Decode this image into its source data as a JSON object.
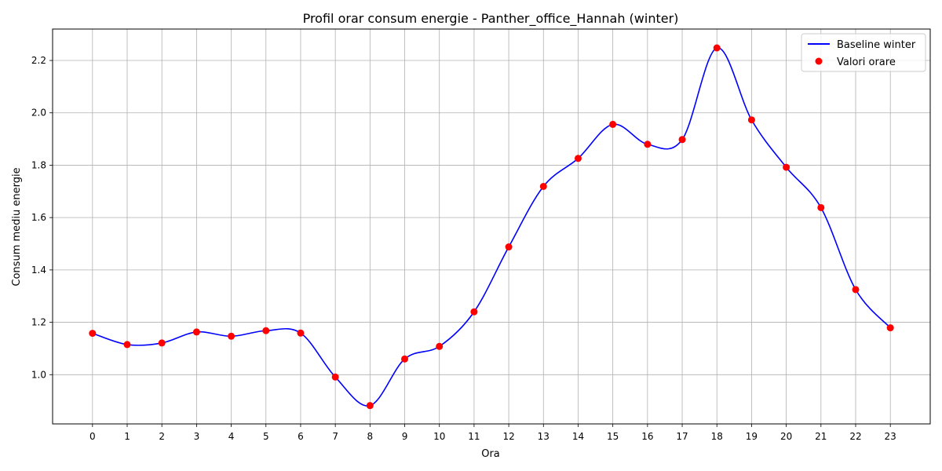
{
  "chart_data": {
    "type": "line",
    "title": "Profil orar consum energie - Panther_office_Hannah (winter)",
    "xlabel": "Ora",
    "ylabel": "Consum mediu energie",
    "x": [
      0,
      1,
      2,
      3,
      4,
      5,
      6,
      7,
      8,
      9,
      10,
      11,
      12,
      13,
      14,
      15,
      16,
      17,
      18,
      19,
      20,
      21,
      22,
      23
    ],
    "x_ticks": [
      "0",
      "1",
      "2",
      "3",
      "4",
      "5",
      "6",
      "7",
      "8",
      "9",
      "10",
      "11",
      "12",
      "13",
      "14",
      "15",
      "16",
      "17",
      "18",
      "19",
      "20",
      "21",
      "22",
      "23"
    ],
    "y_ticks": [
      "1.0",
      "1.2",
      "1.4",
      "1.6",
      "1.8",
      "2.0",
      "2.2"
    ],
    "xlim": [
      -1.15,
      24.15
    ],
    "ylim": [
      0.812,
      2.32
    ],
    "grid": true,
    "legend_position": "top-right",
    "series": [
      {
        "name": "Baseline winter",
        "kind": "smooth-line",
        "color": "#0000ff",
        "values": [
          1.158,
          1.115,
          1.121,
          1.163,
          1.147,
          1.168,
          1.159,
          0.991,
          0.882,
          1.06,
          1.108,
          1.24,
          1.488,
          1.719,
          1.826,
          1.956,
          1.88,
          1.898,
          2.248,
          1.973,
          1.792,
          1.638,
          1.325,
          1.179
        ]
      },
      {
        "name": "Valori orare",
        "kind": "scatter",
        "color": "#ff0000",
        "values": [
          1.158,
          1.115,
          1.121,
          1.163,
          1.147,
          1.168,
          1.159,
          0.991,
          0.882,
          1.06,
          1.108,
          1.24,
          1.488,
          1.719,
          1.826,
          1.956,
          1.88,
          1.898,
          2.248,
          1.973,
          1.792,
          1.638,
          1.325,
          1.179
        ]
      }
    ]
  }
}
